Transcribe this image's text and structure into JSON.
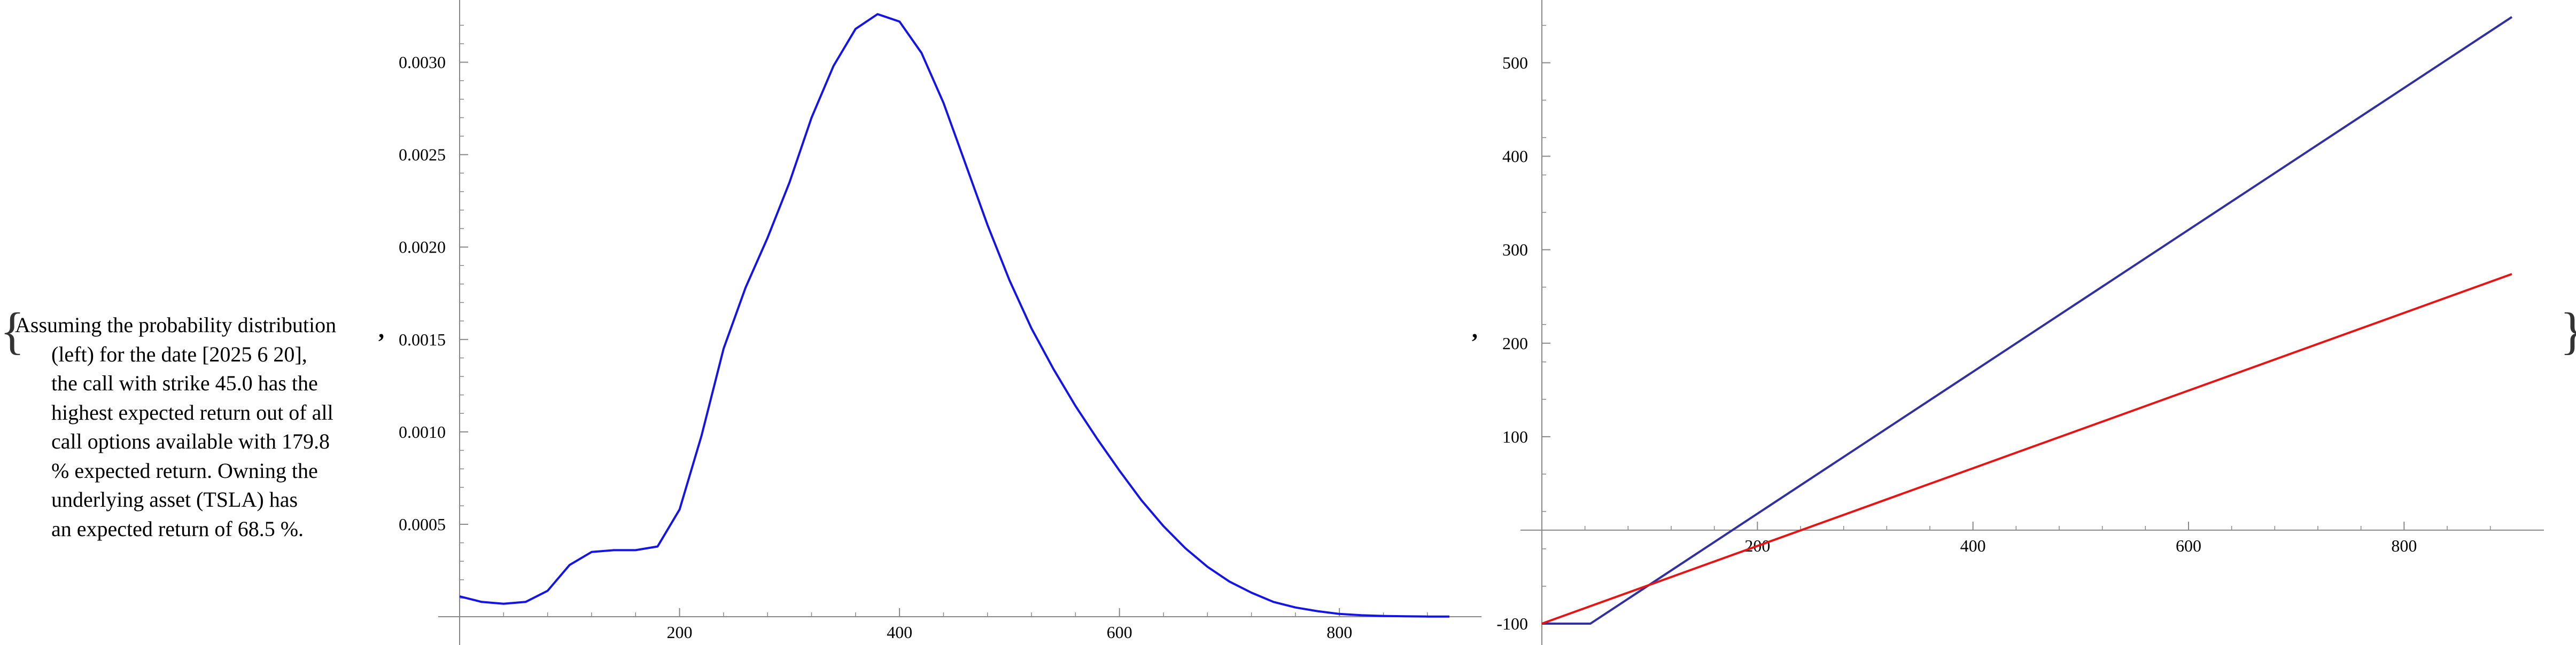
{
  "caption": {
    "lines": [
      "Assuming the probability distribution",
      "(left) for the date [2025 6 20],",
      "the call with strike 45.0 has the",
      "highest expected return out of all",
      "call options available with 179.8",
      "% expected return. Owning the",
      "underlying asset (TSLA) has",
      "an expected return of 68.5 %."
    ]
  },
  "symbols": {
    "brace_open": "{",
    "brace_close": "}",
    "comma": ","
  },
  "chart_data": [
    {
      "type": "line",
      "title": "",
      "xlabel": "",
      "ylabel": "",
      "xlim": [
        0,
        900
      ],
      "ylim": [
        0,
        0.00325
      ],
      "x_ticks": [
        200,
        400,
        600,
        800
      ],
      "x_tick_labels": [
        "200",
        "400",
        "600",
        "800"
      ],
      "y_ticks": [
        0.0005,
        0.001,
        0.0015,
        0.002,
        0.0025,
        0.003
      ],
      "y_tick_labels": [
        "0.0005",
        "0.0010",
        "0.0015",
        "0.0020",
        "0.0025",
        "0.0030"
      ],
      "grid": false,
      "series": [
        {
          "color": "#1414e6",
          "x": [
            0,
            20,
            40,
            60,
            80,
            100,
            120,
            140,
            160,
            180,
            200,
            220,
            240,
            260,
            280,
            300,
            320,
            340,
            360,
            380,
            400,
            420,
            440,
            460,
            480,
            500,
            520,
            540,
            560,
            580,
            600,
            620,
            640,
            660,
            680,
            700,
            720,
            740,
            760,
            780,
            800,
            820,
            840,
            860,
            880,
            900
          ],
          "y": [
            0.00011,
            8e-05,
            7e-05,
            8e-05,
            0.00014,
            0.00028,
            0.00035,
            0.00036,
            0.00036,
            0.00038,
            0.00058,
            0.00098,
            0.00145,
            0.00178,
            0.00205,
            0.00235,
            0.0027,
            0.00298,
            0.00318,
            0.00326,
            0.00322,
            0.00305,
            0.00278,
            0.00245,
            0.00212,
            0.00182,
            0.00156,
            0.00134,
            0.00114,
            0.00096,
            0.00079,
            0.00063,
            0.00049,
            0.00037,
            0.00027,
            0.00019,
            0.00013,
            8e-05,
            5e-05,
            3e-05,
            1.5e-05,
            8e-06,
            4e-06,
            2e-06,
            1e-06,
            5e-07
          ]
        }
      ]
    },
    {
      "type": "line",
      "title": "",
      "xlabel": "",
      "ylabel": "",
      "xlim": [
        0,
        900
      ],
      "ylim": [
        -100,
        550
      ],
      "x_ticks": [
        200,
        400,
        600,
        800
      ],
      "x_tick_labels": [
        "200",
        "400",
        "600",
        "800"
      ],
      "y_ticks": [
        -100,
        100,
        200,
        300,
        400,
        500
      ],
      "y_tick_labels": [
        "-100",
        "100",
        "200",
        "300",
        "400",
        "500"
      ],
      "grid": false,
      "series": [
        {
          "color": "#3030a0",
          "x": [
            0,
            45,
            900
          ],
          "y": [
            -100,
            -100,
            549
          ]
        },
        {
          "color": "#e61414",
          "x": [
            0,
            900
          ],
          "y": [
            -100,
            274
          ]
        }
      ]
    }
  ]
}
